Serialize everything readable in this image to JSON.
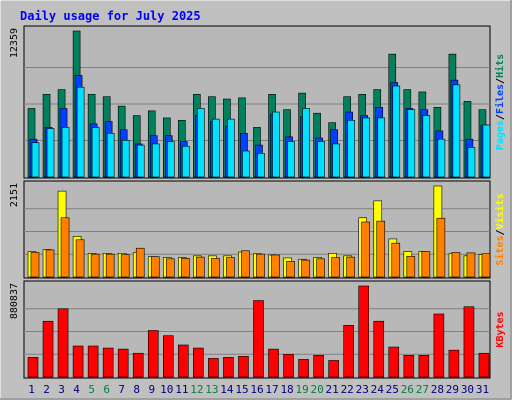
{
  "title": "Daily usage for July 2025",
  "colors": {
    "background": "#c0c0c0",
    "panel_bg": "#b8b8b8",
    "hits": "#00805c",
    "files": "#0040ff",
    "pages": "#00e0ff",
    "visits": "#ffff00",
    "sites": "#ff8000",
    "kbytes": "#ff0000",
    "title": "#0000ff",
    "weekend_label": "#008040",
    "weekday_label": "#000080"
  },
  "chart_data": [
    {
      "type": "bar",
      "panel": "hits-files-pages",
      "ylabel_max": "12359",
      "ymax": 12359,
      "legend": [
        "Pages",
        "/",
        "Files",
        "/",
        "Hits"
      ],
      "categories": [
        "1",
        "2",
        "3",
        "4",
        "5",
        "6",
        "7",
        "8",
        "9",
        "10",
        "11",
        "12",
        "13",
        "14",
        "15",
        "16",
        "17",
        "18",
        "19",
        "20",
        "21",
        "22",
        "23",
        "24",
        "25",
        "26",
        "27",
        "28",
        "29",
        "30",
        "31"
      ],
      "series": [
        {
          "name": "Hits",
          "values": [
            5800,
            7000,
            7400,
            12359,
            7000,
            6800,
            6000,
            5200,
            5600,
            5000,
            4800,
            7000,
            6800,
            6600,
            6700,
            4200,
            7000,
            5700,
            7100,
            5400,
            4600,
            6800,
            7000,
            7400,
            10400,
            7400,
            7200,
            5900,
            10400,
            6400,
            5700
          ]
        },
        {
          "name": "Files",
          "values": [
            3200,
            4200,
            5800,
            8600,
            4500,
            4700,
            4000,
            2800,
            3500,
            3500,
            3000,
            5200,
            4700,
            4300,
            3700,
            2700,
            5300,
            3400,
            5100,
            3300,
            4000,
            5500,
            5200,
            5900,
            8000,
            5800,
            5700,
            3900,
            8200,
            3200,
            4400
          ]
        },
        {
          "name": "Pages",
          "values": [
            2900,
            4100,
            4200,
            7600,
            4200,
            3700,
            3100,
            2700,
            2800,
            3000,
            2600,
            5800,
            4900,
            4900,
            2200,
            2000,
            5500,
            3000,
            5800,
            3000,
            2800,
            4800,
            5000,
            5000,
            7700,
            5700,
            5200,
            3200,
            7800,
            2500,
            4400
          ]
        }
      ]
    },
    {
      "type": "bar",
      "panel": "visits-sites",
      "ylabel_max": "2151",
      "ymax": 2151,
      "legend": [
        "Sites",
        "/",
        "Visits"
      ],
      "categories": [
        "1",
        "2",
        "3",
        "4",
        "5",
        "6",
        "7",
        "8",
        "9",
        "10",
        "11",
        "12",
        "13",
        "14",
        "15",
        "16",
        "17",
        "18",
        "19",
        "20",
        "21",
        "22",
        "23",
        "24",
        "25",
        "26",
        "27",
        "28",
        "29",
        "30",
        "31"
      ],
      "series": [
        {
          "name": "Visits",
          "values": [
            600,
            650,
            2030,
            960,
            560,
            560,
            560,
            580,
            480,
            460,
            460,
            500,
            500,
            500,
            590,
            550,
            520,
            450,
            420,
            460,
            560,
            500,
            1400,
            1800,
            900,
            600,
            600,
            2151,
            550,
            500,
            530
          ]
        },
        {
          "name": "Sites",
          "values": [
            580,
            640,
            1400,
            880,
            540,
            540,
            530,
            680,
            480,
            430,
            440,
            470,
            440,
            460,
            620,
            540,
            520,
            370,
            400,
            430,
            460,
            470,
            1300,
            1320,
            800,
            490,
            600,
            1390,
            580,
            570,
            550
          ]
        }
      ]
    },
    {
      "type": "bar",
      "panel": "kbytes",
      "ylabel_max": "880837",
      "ymax": 880837,
      "legend": [
        "KBytes"
      ],
      "categories": [
        "1",
        "2",
        "3",
        "4",
        "5",
        "6",
        "7",
        "8",
        "9",
        "10",
        "11",
        "12",
        "13",
        "14",
        "15",
        "16",
        "17",
        "18",
        "19",
        "20",
        "21",
        "22",
        "23",
        "24",
        "25",
        "26",
        "27",
        "28",
        "29",
        "30",
        "31"
      ],
      "series": [
        {
          "name": "KBytes",
          "values": [
            190000,
            540000,
            660000,
            300000,
            300000,
            280000,
            270000,
            230000,
            450000,
            400000,
            310000,
            280000,
            180000,
            190000,
            200000,
            740000,
            270000,
            220000,
            170000,
            210000,
            160000,
            500000,
            880837,
            540000,
            290000,
            210000,
            210000,
            610000,
            260000,
            680000,
            230000
          ]
        }
      ]
    }
  ],
  "x_axis": {
    "days": [
      "1",
      "2",
      "3",
      "4",
      "5",
      "6",
      "7",
      "8",
      "9",
      "10",
      "11",
      "12",
      "13",
      "14",
      "15",
      "16",
      "17",
      "18",
      "19",
      "20",
      "21",
      "22",
      "23",
      "24",
      "25",
      "26",
      "27",
      "28",
      "29",
      "30",
      "31"
    ],
    "weekend_days": [
      "5",
      "6",
      "12",
      "13",
      "19",
      "20",
      "26",
      "27"
    ]
  }
}
